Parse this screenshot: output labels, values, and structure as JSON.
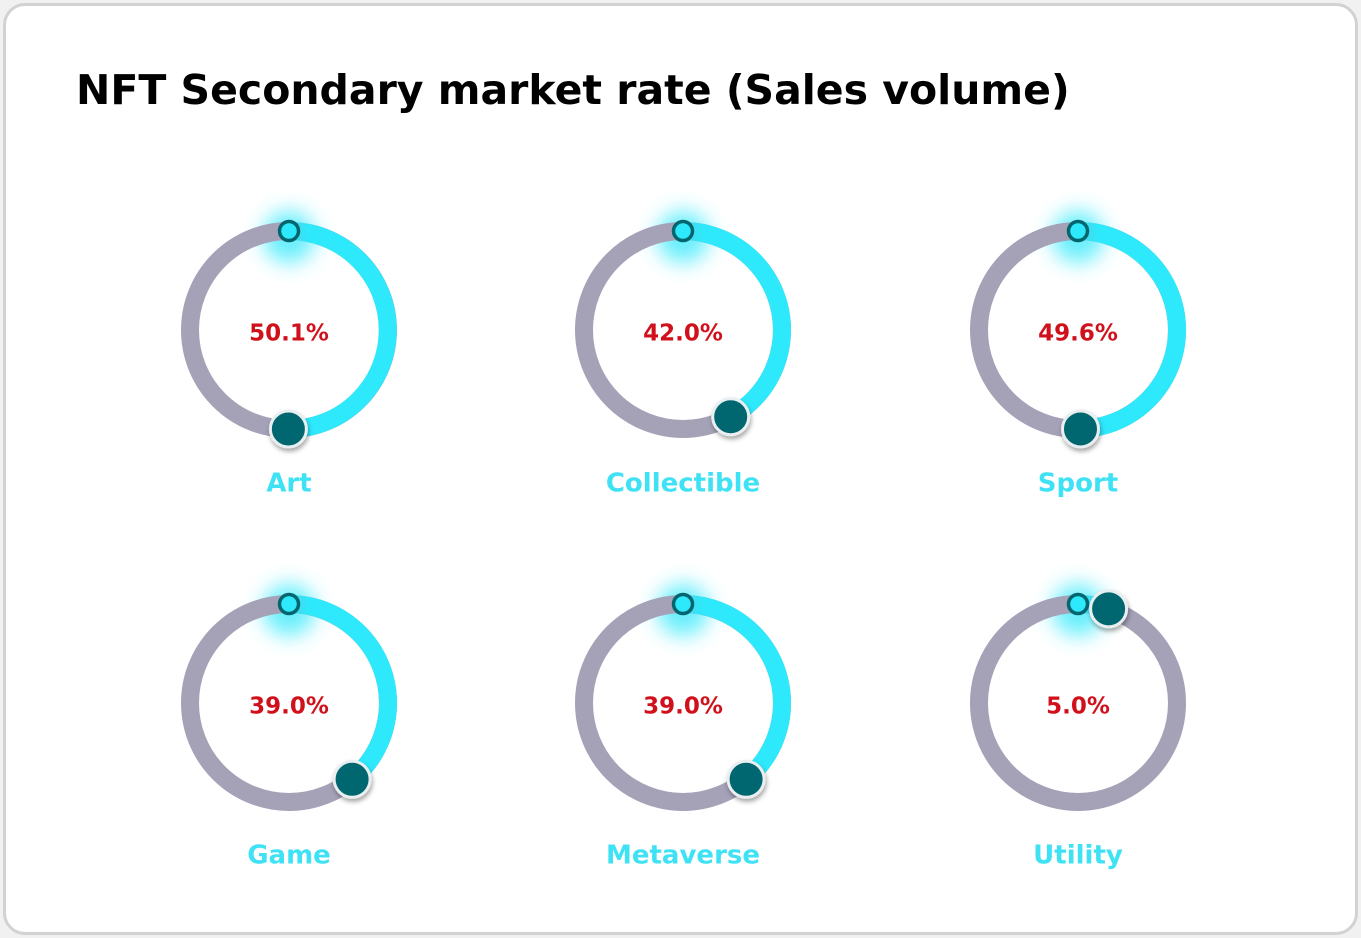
{
  "title": "NFT Secondary market rate (Sales volume)",
  "colors": {
    "track": "#a5a2b8",
    "progress": "#2ee8fb",
    "progress_start": "#8fa9bb",
    "percent_text": "#d0111b",
    "category_text": "#3fe2f4",
    "end_knob": "#03666f",
    "start_knob": "#2ee8fb",
    "glow": "#35e9fb"
  },
  "chart_data": {
    "type": "donut",
    "title": "NFT Secondary market rate (Sales volume)",
    "unit": "%",
    "items": [
      {
        "name": "Art",
        "value": 50.1,
        "label": "50.1%"
      },
      {
        "name": "Collectible",
        "value": 42.0,
        "label": "42.0%"
      },
      {
        "name": "Sport",
        "value": 49.6,
        "label": "49.6%"
      },
      {
        "name": "Game",
        "value": 39.0,
        "label": "39.0%"
      },
      {
        "name": "Metaverse",
        "value": 39.0,
        "label": "39.0%"
      },
      {
        "name": "Utility",
        "value": 5.0,
        "label": "5.0%"
      }
    ]
  }
}
